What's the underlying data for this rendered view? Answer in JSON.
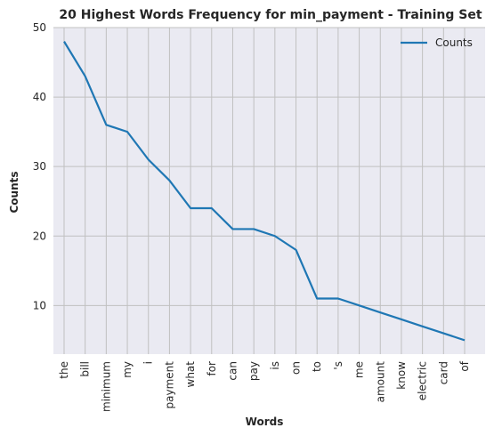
{
  "chart_data": {
    "type": "line",
    "title": "20 Highest Words Frequency for min_payment - Training Set",
    "xlabel": "Words",
    "ylabel": "Counts",
    "categories": [
      "the",
      "bill",
      "minimum",
      "my",
      "i",
      "payment",
      "what",
      "for",
      "can",
      "pay",
      "is",
      "on",
      "to",
      "'s",
      "me",
      "amount",
      "know",
      "electric",
      "card",
      "of"
    ],
    "series": [
      {
        "name": "Counts",
        "values": [
          48,
          43,
          36,
          35,
          31,
          28,
          24,
          24,
          21,
          21,
          20,
          18,
          11,
          11,
          10,
          9,
          8,
          7,
          6,
          5
        ]
      }
    ],
    "ylim": [
      3,
      50
    ],
    "yticks": [
      10,
      20,
      30,
      40,
      50
    ],
    "grid": true,
    "legend": "top-right",
    "colors": {
      "line": "#1f77b4",
      "background": "#eaeaf2",
      "grid": "#c0c0c0"
    }
  }
}
